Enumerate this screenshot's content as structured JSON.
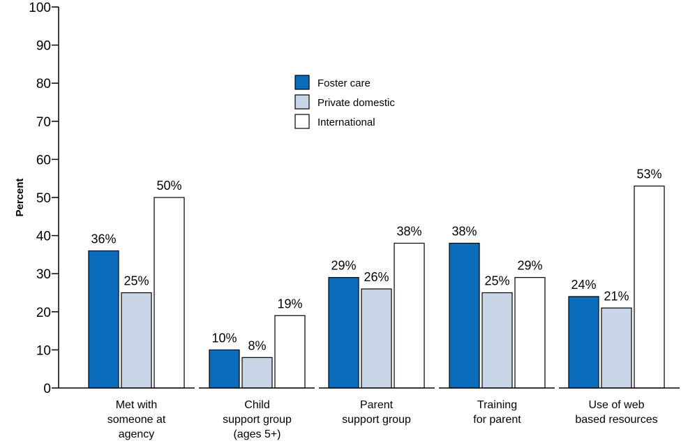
{
  "chart_data": {
    "type": "bar",
    "ylabel": "Percent",
    "ylim": [
      0,
      100
    ],
    "yticks": [
      "0",
      "10",
      "20",
      "30",
      "40",
      "50",
      "60",
      "70",
      "80",
      "90",
      "100"
    ],
    "categories": [
      [
        "Met with",
        "someone at",
        "agency"
      ],
      [
        "Child",
        "support group",
        "(ages 5+)"
      ],
      [
        "Parent",
        "support group"
      ],
      [
        "Training",
        "for parent"
      ],
      [
        "Use of web",
        "based resources"
      ]
    ],
    "series": [
      {
        "name": "Foster care",
        "color": "#0a6cbb",
        "values": [
          36,
          10,
          29,
          38,
          24
        ],
        "labels": [
          "36%",
          "10%",
          "29%",
          "38%",
          "24%"
        ]
      },
      {
        "name": "Private domestic",
        "color": "#c8d6e8",
        "values": [
          25,
          8,
          26,
          25,
          21
        ],
        "labels": [
          "25%",
          "8%",
          "26%",
          "25%",
          "21%"
        ]
      },
      {
        "name": "International",
        "color": "#ffffff",
        "values": [
          50,
          19,
          38,
          29,
          53
        ],
        "labels": [
          "50%",
          "19%",
          "38%",
          "29%",
          "53%"
        ]
      }
    ],
    "legend": {
      "position": "top-center"
    }
  }
}
